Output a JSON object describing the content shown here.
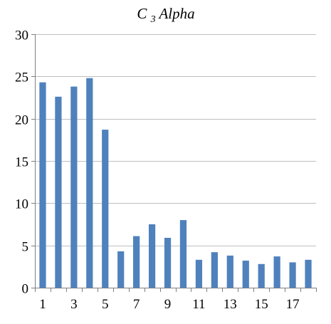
{
  "chart_data": {
    "type": "bar",
    "title": {
      "main": "C",
      "subscript": "3",
      "rest": " Alpha"
    },
    "categories": [
      "1",
      "2",
      "3",
      "4",
      "5",
      "6",
      "7",
      "8",
      "9",
      "10",
      "11",
      "12",
      "13",
      "14",
      "15",
      "16",
      "17",
      "18"
    ],
    "values": [
      24.3,
      22.6,
      23.8,
      24.8,
      18.7,
      4.3,
      6.1,
      7.5,
      5.9,
      8.0,
      3.3,
      4.2,
      3.8,
      3.2,
      2.8,
      3.7,
      3.0,
      3.3
    ],
    "x_tick_labels": [
      "1",
      "3",
      "5",
      "7",
      "9",
      "11",
      "13",
      "15",
      "17"
    ],
    "y_ticks": [
      0,
      5,
      10,
      15,
      20,
      25,
      30
    ],
    "ylim": [
      0,
      30
    ],
    "xlabel": "",
    "ylabel": "",
    "grid": true,
    "bar_color": "#4f81bd",
    "grid_color": "#bfbfbf",
    "axis_color": "#7f7f7f"
  }
}
